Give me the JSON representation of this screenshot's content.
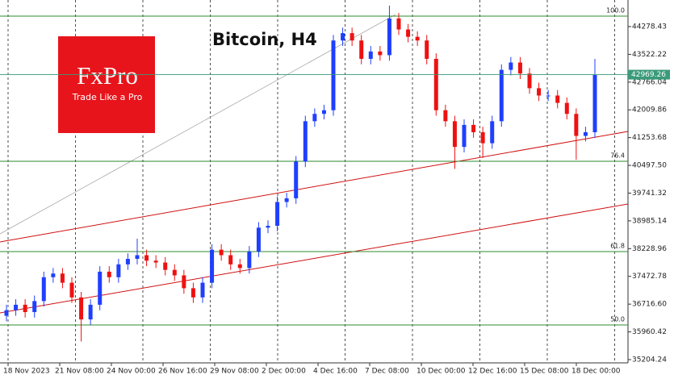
{
  "chart_data": {
    "type": "candlestick",
    "title": "Bitcoin, H4",
    "logo": {
      "brand": "FxPro",
      "tagline": "Trade Like a Pro"
    },
    "up_color": "#1f3fff",
    "down_color": "#ee1111",
    "ylim": [
      35116,
      45003
    ],
    "yticks": [
      35204.24,
      35960.42,
      {
        "value": 36716.6,
        "label": "36716.60"
      },
      37472.78,
      38228.96,
      38985.14,
      39741.32,
      {
        "value": 40497.5,
        "label": "40497.50"
      },
      41253.68,
      42009.86,
      42766.04,
      43522.22,
      44278.43
    ],
    "x_labels": [
      "18 Nov 2023",
      "21 Nov 08:00",
      "24 Nov 00:00",
      "26 Nov 16:00",
      "29 Nov 08:00",
      "2 Dec 00:00",
      "4 Dec 16:00",
      "7 Dec 08:00",
      "10 Dec 00:00",
      "12 Dec 16:00",
      "15 Dec 08:00",
      "18 Dec 00:00"
    ],
    "last_price": 42969.26,
    "fib_levels": [
      {
        "label": "100.0",
        "value": 44564
      },
      {
        "label": "76.4",
        "value": 40609
      },
      {
        "label": "61.8",
        "value": 38148
      },
      {
        "label": "50.0",
        "value": 36149
      }
    ],
    "open": [
      36400,
      36550,
      36700,
      36500,
      36800,
      37450,
      37550,
      37300,
      36900,
      36300,
      36700,
      37600,
      37450,
      37800,
      37950,
      38050,
      37900,
      37850,
      37650,
      37500,
      37150,
      36900,
      37300,
      38200,
      38050,
      37800,
      37700,
      38150,
      38800,
      38850,
      39500,
      39600,
      40600,
      41700,
      41900,
      42000,
      43900,
      44100,
      43900,
      43400,
      43600,
      43500,
      44500,
      44200,
      44000,
      43900,
      43400,
      42000,
      41700,
      41000,
      41600,
      41400,
      41100,
      41700,
      43100,
      43300,
      43000,
      42600,
      42400,
      42400,
      42200,
      41900,
      41300,
      41400
    ],
    "high": [
      36700,
      36850,
      36850,
      36950,
      37600,
      37700,
      37700,
      37450,
      37050,
      36850,
      37750,
      37750,
      37950,
      38100,
      38500,
      38200,
      38050,
      38000,
      37800,
      37650,
      37300,
      37450,
      38350,
      38350,
      38200,
      37950,
      38300,
      38950,
      39000,
      39650,
      39750,
      40750,
      41850,
      42050,
      42150,
      44050,
      44250,
      44250,
      44050,
      43750,
      43750,
      44850,
      44650,
      44350,
      44150,
      44050,
      43550,
      42150,
      41850,
      41750,
      41750,
      41550,
      41850,
      43250,
      43450,
      43450,
      43150,
      42750,
      42550,
      42550,
      42350,
      42050,
      41550,
      43400
    ],
    "low": [
      36250,
      36400,
      36350,
      36350,
      36650,
      37300,
      37150,
      36750,
      35700,
      36150,
      36550,
      37300,
      37300,
      37650,
      37800,
      37750,
      37700,
      37500,
      37350,
      37000,
      36750,
      36750,
      37150,
      37900,
      37650,
      37550,
      37550,
      38000,
      38650,
      38700,
      39350,
      39450,
      40450,
      41550,
      41750,
      41850,
      43750,
      43750,
      43250,
      43250,
      43350,
      43350,
      44050,
      43850,
      43750,
      43250,
      41850,
      41550,
      40400,
      40850,
      41250,
      40700,
      40950,
      41550,
      42950,
      42850,
      42450,
      42250,
      42250,
      42050,
      41750,
      40650,
      41150,
      41250
    ],
    "close": [
      36550,
      36700,
      36500,
      36800,
      37450,
      37550,
      37300,
      36900,
      36300,
      36700,
      37600,
      37450,
      37800,
      37950,
      38050,
      37900,
      37850,
      37650,
      37500,
      37150,
      36900,
      37300,
      38200,
      38050,
      37800,
      37700,
      38150,
      38800,
      38850,
      39500,
      39600,
      40600,
      41700,
      41900,
      42000,
      43900,
      44100,
      43900,
      43400,
      43600,
      43500,
      44500,
      44200,
      44000,
      43900,
      43400,
      42000,
      41700,
      41000,
      41600,
      41400,
      41100,
      41700,
      43100,
      43300,
      43000,
      42600,
      42400,
      42400,
      42200,
      41900,
      41300,
      41400,
      42969.26
    ]
  }
}
